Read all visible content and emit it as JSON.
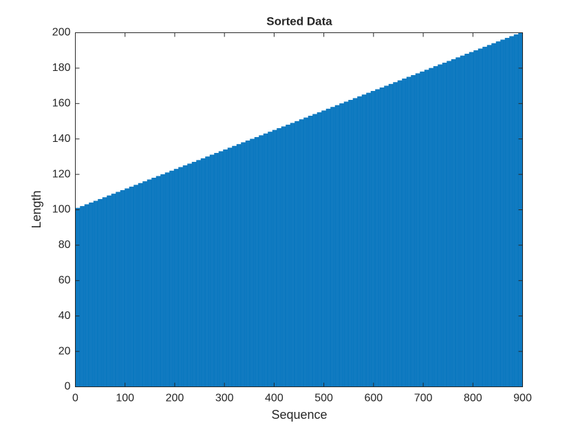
{
  "chart_data": {
    "type": "bar",
    "title": "Sorted Data",
    "x_label": "Sequence",
    "y_label": "Length",
    "color": "#0072bd",
    "xlim": [
      0,
      900
    ],
    "xticks": [
      0,
      100,
      200,
      300,
      400,
      500,
      600,
      700,
      800,
      900
    ],
    "ylim": [
      0,
      200
    ],
    "yticks": [
      0,
      20,
      40,
      60,
      80,
      100,
      120,
      140,
      160,
      180,
      200
    ],
    "values": [
      101,
      101,
      101,
      101,
      101,
      101,
      101,
      101,
      101,
      102,
      102,
      102,
      102,
      102,
      102,
      102,
      102,
      102,
      103,
      103,
      103,
      103,
      103,
      103,
      103,
      103,
      103,
      104,
      104,
      104,
      104,
      104,
      104,
      104,
      104,
      104,
      105,
      105,
      105,
      105,
      105,
      105,
      105,
      105,
      105,
      106,
      106,
      106,
      106,
      106,
      106,
      106,
      106,
      106,
      107,
      107,
      107,
      107,
      107,
      107,
      107,
      107,
      107,
      108,
      108,
      108,
      108,
      108,
      108,
      108,
      108,
      108,
      109,
      109,
      109,
      109,
      109,
      109,
      109,
      109,
      109,
      110,
      110,
      110,
      110,
      110,
      110,
      110,
      110,
      110,
      111,
      111,
      111,
      111,
      111,
      111,
      111,
      111,
      111,
      112,
      112,
      112,
      112,
      112,
      112,
      112,
      112,
      112,
      113,
      113,
      113,
      113,
      113,
      113,
      113,
      113,
      113,
      114,
      114,
      114,
      114,
      114,
      114,
      114,
      114,
      114,
      115,
      115,
      115,
      115,
      115,
      115,
      115,
      115,
      115,
      116,
      116,
      116,
      116,
      116,
      116,
      116,
      116,
      116,
      117,
      117,
      117,
      117,
      117,
      117,
      117,
      117,
      117,
      118,
      118,
      118,
      118,
      118,
      118,
      118,
      118,
      118,
      119,
      119,
      119,
      119,
      119,
      119,
      119,
      119,
      119,
      120,
      120,
      120,
      120,
      120,
      120,
      120,
      120,
      120,
      121,
      121,
      121,
      121,
      121,
      121,
      121,
      121,
      121,
      122,
      122,
      122,
      122,
      122,
      122,
      122,
      122,
      122,
      123,
      123,
      123,
      123,
      123,
      123,
      123,
      123,
      123,
      124,
      124,
      124,
      124,
      124,
      124,
      124,
      124,
      124,
      125,
      125,
      125,
      125,
      125,
      125,
      125,
      125,
      125,
      126,
      126,
      126,
      126,
      126,
      126,
      126,
      126,
      126,
      127,
      127,
      127,
      127,
      127,
      127,
      127,
      127,
      127,
      128,
      128,
      128,
      128,
      128,
      128,
      128,
      128,
      128,
      129,
      129,
      129,
      129,
      129,
      129,
      129,
      129,
      129,
      130,
      130,
      130,
      130,
      130,
      130,
      130,
      130,
      130,
      131,
      131,
      131,
      131,
      131,
      131,
      131,
      131,
      131,
      132,
      132,
      132,
      132,
      132,
      132,
      132,
      132,
      132,
      133,
      133,
      133,
      133,
      133,
      133,
      133,
      133,
      133,
      134,
      134,
      134,
      134,
      134,
      134,
      134,
      134,
      134,
      135,
      135,
      135,
      135,
      135,
      135,
      135,
      135,
      135,
      136,
      136,
      136,
      136,
      136,
      136,
      136,
      136,
      136,
      137,
      137,
      137,
      137,
      137,
      137,
      137,
      137,
      137,
      138,
      138,
      138,
      138,
      138,
      138,
      138,
      138,
      138,
      139,
      139,
      139,
      139,
      139,
      139,
      139,
      139,
      139,
      140,
      140,
      140,
      140,
      140,
      140,
      140,
      140,
      140,
      141,
      141,
      141,
      141,
      141,
      141,
      141,
      141,
      141,
      142,
      142,
      142,
      142,
      142,
      142,
      142,
      142,
      142,
      143,
      143,
      143,
      143,
      143,
      143,
      143,
      143,
      143,
      144,
      144,
      144,
      144,
      144,
      144,
      144,
      144,
      144,
      145,
      145,
      145,
      145,
      145,
      145,
      145,
      145,
      145,
      146,
      146,
      146,
      146,
      146,
      146,
      146,
      146,
      146,
      147,
      147,
      147,
      147,
      147,
      147,
      147,
      147,
      147,
      148,
      148,
      148,
      148,
      148,
      148,
      148,
      148,
      148,
      149,
      149,
      149,
      149,
      149,
      149,
      149,
      149,
      149,
      150,
      150,
      150,
      150,
      150,
      150,
      150,
      150,
      150,
      151,
      151,
      151,
      151,
      151,
      151,
      151,
      151,
      151,
      152,
      152,
      152,
      152,
      152,
      152,
      152,
      152,
      152,
      153,
      153,
      153,
      153,
      153,
      153,
      153,
      153,
      153,
      154,
      154,
      154,
      154,
      154,
      154,
      154,
      154,
      154,
      155,
      155,
      155,
      155,
      155,
      155,
      155,
      155,
      155,
      156,
      156,
      156,
      156,
      156,
      156,
      156,
      156,
      156,
      157,
      157,
      157,
      157,
      157,
      157,
      157,
      157,
      157,
      158,
      158,
      158,
      158,
      158,
      158,
      158,
      158,
      158,
      159,
      159,
      159,
      159,
      159,
      159,
      159,
      159,
      159,
      160,
      160,
      160,
      160,
      160,
      160,
      160,
      160,
      160,
      161,
      161,
      161,
      161,
      161,
      161,
      161,
      161,
      161,
      162,
      162,
      162,
      162,
      162,
      162,
      162,
      162,
      162,
      163,
      163,
      163,
      163,
      163,
      163,
      163,
      163,
      163,
      164,
      164,
      164,
      164,
      164,
      164,
      164,
      164,
      164,
      165,
      165,
      165,
      165,
      165,
      165,
      165,
      165,
      165,
      166,
      166,
      166,
      166,
      166,
      166,
      166,
      166,
      166,
      167,
      167,
      167,
      167,
      167,
      167,
      167,
      167,
      167,
      168,
      168,
      168,
      168,
      168,
      168,
      168,
      168,
      168,
      169,
      169,
      169,
      169,
      169,
      169,
      169,
      169,
      169,
      170,
      170,
      170,
      170,
      170,
      170,
      170,
      170,
      170,
      171,
      171,
      171,
      171,
      171,
      171,
      171,
      171,
      171,
      172,
      172,
      172,
      172,
      172,
      172,
      172,
      172,
      172,
      173,
      173,
      173,
      173,
      173,
      173,
      173,
      173,
      173,
      174,
      174,
      174,
      174,
      174,
      174,
      174,
      174,
      174,
      175,
      175,
      175,
      175,
      175,
      175,
      175,
      175,
      175,
      176,
      176,
      176,
      176,
      176,
      176,
      176,
      176,
      176,
      177,
      177,
      177,
      177,
      177,
      177,
      177,
      177,
      177,
      178,
      178,
      178,
      178,
      178,
      178,
      178,
      178,
      178,
      179,
      179,
      179,
      179,
      179,
      179,
      179,
      179,
      179,
      180,
      180,
      180,
      180,
      180,
      180,
      180,
      180,
      180,
      181,
      181,
      181,
      181,
      181,
      181,
      181,
      181,
      181,
      182,
      182,
      182,
      182,
      182,
      182,
      182,
      182,
      182,
      183,
      183,
      183,
      183,
      183,
      183,
      183,
      183,
      183,
      184,
      184,
      184,
      184,
      184,
      184,
      184,
      184,
      184,
      185,
      185,
      185,
      185,
      185,
      185,
      185,
      185,
      185,
      186,
      186,
      186,
      186,
      186,
      186,
      186,
      186,
      186,
      187,
      187,
      187,
      187,
      187,
      187,
      187,
      187,
      187,
      188,
      188,
      188,
      188,
      188,
      188,
      188,
      188,
      188,
      189,
      189,
      189,
      189,
      189,
      189,
      189,
      189,
      189,
      190,
      190,
      190,
      190,
      190,
      190,
      190,
      190,
      190,
      191,
      191,
      191,
      191,
      191,
      191,
      191,
      191,
      191,
      192,
      192,
      192,
      192,
      192,
      192,
      192,
      192,
      192,
      193,
      193,
      193,
      193,
      193,
      193,
      193,
      193,
      193,
      194,
      194,
      194,
      194,
      194,
      194,
      194,
      194,
      194,
      195,
      195,
      195,
      195,
      195,
      195,
      195,
      195,
      195,
      196,
      196,
      196,
      196,
      196,
      196,
      196,
      196,
      196,
      197,
      197,
      197,
      197,
      197,
      197,
      197,
      197,
      197,
      198,
      198,
      198,
      198,
      198,
      198,
      198,
      198,
      198,
      199,
      199,
      199,
      199,
      199,
      199,
      199,
      199,
      199,
      200,
      200,
      200,
      200,
      200,
      200,
      200,
      200,
      200
    ]
  }
}
